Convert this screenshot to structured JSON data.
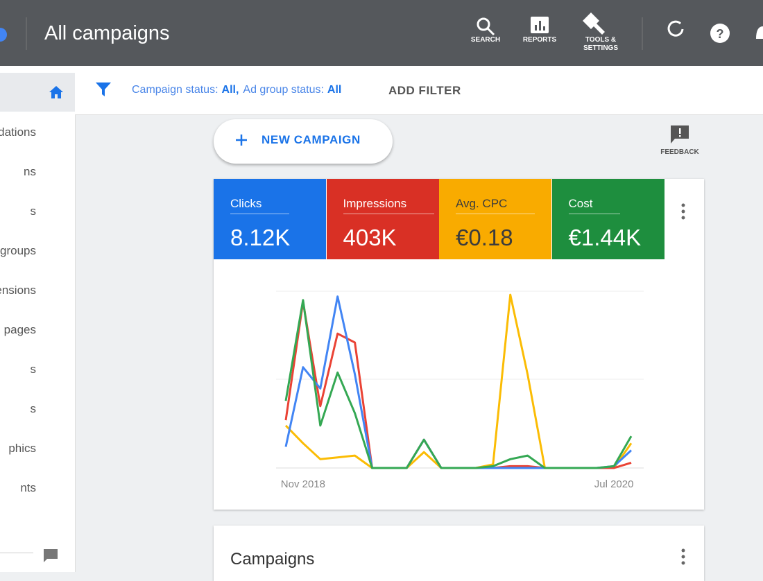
{
  "header": {
    "title": "All campaigns",
    "actions": [
      "SEARCH",
      "REPORTS",
      "TOOLS & SETTINGS"
    ]
  },
  "sidebar": {
    "items": [
      "endations",
      "ns",
      "s",
      "groups",
      "ensions",
      "pages",
      "s",
      "s",
      "phics",
      "nts"
    ]
  },
  "filter": {
    "parts": [
      "Campaign status:",
      "All,",
      "Ad group status:",
      "All"
    ],
    "add": "ADD FILTER"
  },
  "new_campaign": "NEW CAMPAIGN",
  "feedback": "FEEDBACK",
  "metrics": [
    {
      "label": "Clicks",
      "value": "8.12K",
      "color": "#1a73e8"
    },
    {
      "label": "Impressions",
      "value": "403K",
      "color": "#d93025"
    },
    {
      "label": "Avg. CPC",
      "value": "€0.18",
      "color": "#f9ab00"
    },
    {
      "label": "Cost",
      "value": "€1.44K",
      "color": "#1e8e3e"
    }
  ],
  "chart_data": {
    "type": "line",
    "categories": [
      null,
      "Nov 2018",
      null,
      null,
      null,
      null,
      null,
      null,
      null,
      null,
      null,
      null,
      null,
      null,
      null,
      null,
      null,
      null,
      null,
      "Jul 2020",
      null
    ],
    "ylim": [
      0,
      100
    ],
    "series": [
      {
        "color": "#fbbc04",
        "values": [
          24,
          14,
          5,
          6,
          7,
          0,
          0,
          0,
          9,
          0,
          0,
          0,
          2,
          98,
          53,
          0,
          0,
          0,
          0,
          0,
          14
        ]
      },
      {
        "color": "#ea4335",
        "values": [
          27,
          94,
          35,
          76,
          71,
          0,
          0,
          0,
          16,
          0,
          0,
          0,
          0,
          1,
          1,
          0,
          0,
          0,
          0,
          0,
          3
        ]
      },
      {
        "color": "#4285f4",
        "values": [
          12,
          57,
          45,
          97,
          53,
          0,
          0,
          0,
          16,
          0,
          0,
          0,
          0,
          0,
          0,
          0,
          0,
          0,
          0,
          1,
          10
        ]
      },
      {
        "color": "#34a853",
        "values": [
          38,
          95,
          24,
          54,
          31,
          0,
          0,
          0,
          16,
          0,
          0,
          0,
          1,
          5,
          7,
          0,
          0,
          0,
          0,
          1,
          18
        ]
      }
    ]
  },
  "campaigns": {
    "title": "Campaigns"
  }
}
